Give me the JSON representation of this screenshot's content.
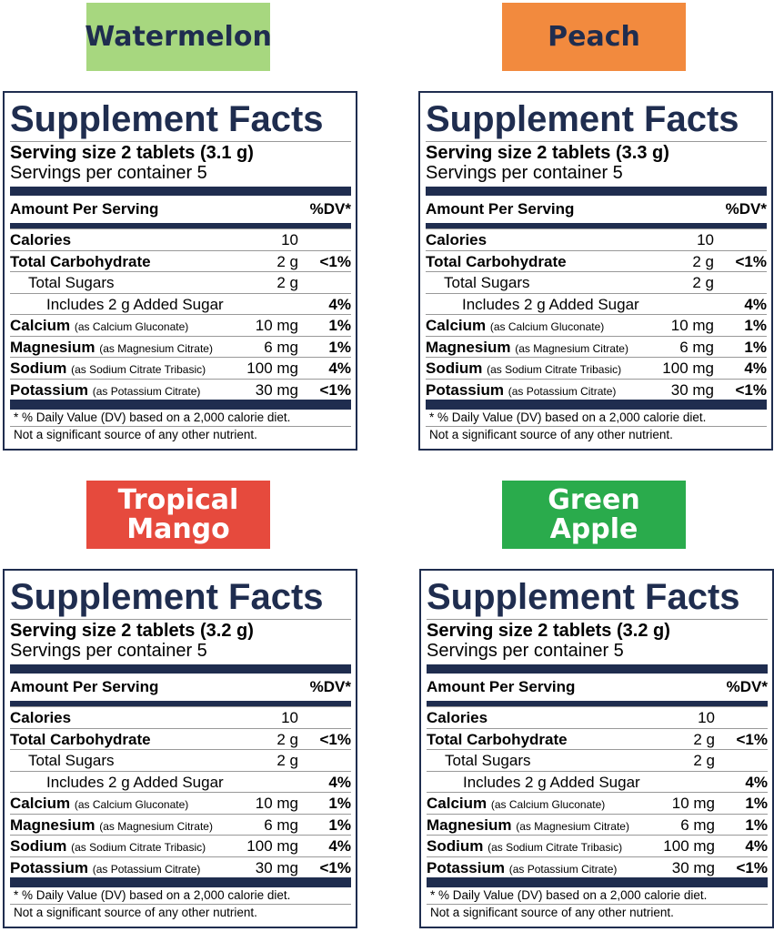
{
  "panels": [
    {
      "flavor": [
        "Watermelon"
      ],
      "title": "Supplement Facts",
      "serving_size": "Serving size 2 tablets (3.1 g)",
      "servings": "Servings per container 5",
      "header_amount": "Amount Per Serving",
      "header_dv": "%DV*",
      "rows": [
        {
          "name": "Calories",
          "amount": "10"
        },
        {
          "name": "Total Carbohydrate",
          "amount": "2 g",
          "dv": "<1%"
        },
        {
          "name": "Total Sugars",
          "amount": "2 g"
        },
        {
          "name": "Includes 2 g Added Sugar",
          "dv": "4%"
        },
        {
          "name": "Calcium",
          "note": "(as Calcium Gluconate)",
          "amount": "10 mg",
          "dv": "1%"
        },
        {
          "name": "Magnesium",
          "note": "(as Magnesium Citrate)",
          "amount": "6 mg",
          "dv": "1%"
        },
        {
          "name": "Sodium",
          "note": "(as Sodium Citrate Tribasic)",
          "amount": "100 mg",
          "dv": "4%"
        },
        {
          "name": "Potassium",
          "note": "(as Potassium Citrate)",
          "amount": "30 mg",
          "dv": "<1%"
        }
      ],
      "footnotes": [
        "* % Daily Value (DV) based on a 2,000 calorie diet.",
        "Not a significant source of any other nutrient."
      ]
    },
    {
      "flavor": [
        "Peach"
      ],
      "title": "Supplement Facts",
      "serving_size": "Serving size 2 tablets (3.3 g)",
      "servings": "Servings per container 5",
      "header_amount": "Amount Per Serving",
      "header_dv": "%DV*",
      "rows": [
        {
          "name": "Calories",
          "amount": "10"
        },
        {
          "name": "Total Carbohydrate",
          "amount": "2 g",
          "dv": "<1%"
        },
        {
          "name": "Total Sugars",
          "amount": "2 g"
        },
        {
          "name": "Includes 2 g Added Sugar",
          "dv": "4%"
        },
        {
          "name": "Calcium",
          "note": "(as Calcium Gluconate)",
          "amount": "10 mg",
          "dv": "1%"
        },
        {
          "name": "Magnesium",
          "note": "(as Magnesium Citrate)",
          "amount": "6 mg",
          "dv": "1%"
        },
        {
          "name": "Sodium",
          "note": "(as Sodium Citrate Tribasic)",
          "amount": "100 mg",
          "dv": "4%"
        },
        {
          "name": "Potassium",
          "note": "(as Potassium Citrate)",
          "amount": "30 mg",
          "dv": "<1%"
        }
      ],
      "footnotes": [
        "* % Daily Value (DV) based on a 2,000 calorie diet.",
        "Not a significant source of any other nutrient."
      ]
    },
    {
      "flavor": [
        "Tropical",
        "Mango"
      ],
      "title": "Supplement Facts",
      "serving_size": "Serving size 2 tablets (3.2 g)",
      "servings": "Servings per container 5",
      "header_amount": "Amount Per Serving",
      "header_dv": "%DV*",
      "rows": [
        {
          "name": "Calories",
          "amount": "10"
        },
        {
          "name": "Total Carbohydrate",
          "amount": "2 g",
          "dv": "<1%"
        },
        {
          "name": "Total Sugars",
          "amount": "2 g"
        },
        {
          "name": "Includes 2 g Added Sugar",
          "dv": "4%"
        },
        {
          "name": "Calcium",
          "note": "(as Calcium Gluconate)",
          "amount": "10 mg",
          "dv": "1%"
        },
        {
          "name": "Magnesium",
          "note": "(as Magnesium Citrate)",
          "amount": "6 mg",
          "dv": "1%"
        },
        {
          "name": "Sodium",
          "note": "(as Sodium Citrate Tribasic)",
          "amount": "100 mg",
          "dv": "4%"
        },
        {
          "name": "Potassium",
          "note": "(as Potassium Citrate)",
          "amount": "30 mg",
          "dv": "<1%"
        }
      ],
      "footnotes": [
        "* % Daily Value (DV) based on a 2,000 calorie diet.",
        "Not a significant source of any other nutrient."
      ]
    },
    {
      "flavor": [
        "Green",
        "Apple"
      ],
      "title": "Supplement Facts",
      "serving_size": "Serving size 2 tablets (3.2 g)",
      "servings": "Servings per container 5",
      "header_amount": "Amount Per Serving",
      "header_dv": "%DV*",
      "rows": [
        {
          "name": "Calories",
          "amount": "10"
        },
        {
          "name": "Total Carbohydrate",
          "amount": "2 g",
          "dv": "<1%"
        },
        {
          "name": "Total Sugars",
          "amount": "2 g"
        },
        {
          "name": "Includes 2 g Added Sugar",
          "dv": "4%"
        },
        {
          "name": "Calcium",
          "note": "(as Calcium Gluconate)",
          "amount": "10 mg",
          "dv": "1%"
        },
        {
          "name": "Magnesium",
          "note": "(as Magnesium Citrate)",
          "amount": "6 mg",
          "dv": "1%"
        },
        {
          "name": "Sodium",
          "note": "(as Sodium Citrate Tribasic)",
          "amount": "100 mg",
          "dv": "4%"
        },
        {
          "name": "Potassium",
          "note": "(as Potassium Citrate)",
          "amount": "30 mg",
          "dv": "<1%"
        }
      ],
      "footnotes": [
        "* % Daily Value (DV) based on a 2,000 calorie diet.",
        "Not a significant source of any other nutrient."
      ]
    }
  ]
}
